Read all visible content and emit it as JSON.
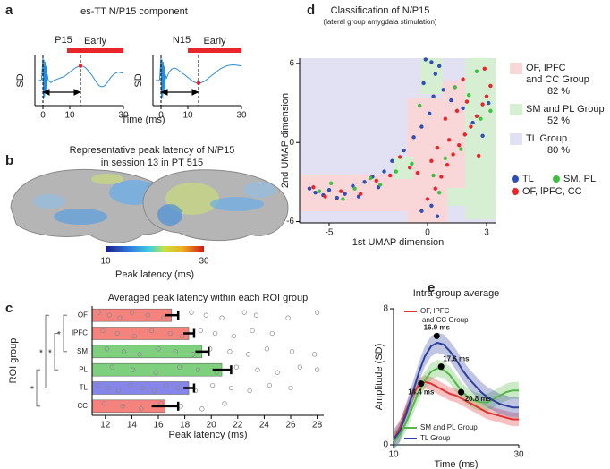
{
  "figure": {
    "panel_labels": [
      "a",
      "b",
      "c",
      "d",
      "e"
    ],
    "a_title": "es-TT N/P15 component",
    "a_xlabel": "Time (ms)",
    "b_title": "Representative peak latency of N/P15",
    "b_subtitle": "in session 13 in PT 515",
    "b_colorbar_ticks": [
      10,
      30
    ],
    "b_colorbar_label": "Peak latency (ms)"
  },
  "chart_data": [
    {
      "type": "line",
      "title": "P15",
      "ylabel": "SD",
      "color": "#2b8cd6",
      "x": [
        -2,
        -1,
        -0.5,
        0,
        0.2,
        0.4,
        0.6,
        0.8,
        1,
        1.2,
        1.4,
        1.6,
        2,
        3,
        4,
        5,
        6,
        7,
        8,
        9,
        10,
        11,
        12,
        13,
        14,
        15,
        16,
        17,
        18,
        19,
        20,
        21,
        22,
        23,
        24,
        25,
        26,
        27,
        28,
        29,
        30
      ],
      "values": [
        0,
        0,
        0.05,
        1.1,
        -0.9,
        1.0,
        -0.8,
        0.9,
        -0.6,
        0.7,
        -0.4,
        0.3,
        0,
        -0.1,
        0,
        0.05,
        0.1,
        0.15,
        0.2,
        0.3,
        0.4,
        0.5,
        0.6,
        0.66,
        0.7,
        0.68,
        0.6,
        0.45,
        0.3,
        0.1,
        -0.1,
        -0.25,
        -0.3,
        -0.25,
        -0.1,
        0.1,
        0.25,
        0.35,
        0.4,
        0.38,
        0.35
      ],
      "xlim": [
        -3,
        30
      ],
      "ylim": [
        -1.2,
        1.2
      ],
      "xticks": [
        0,
        10,
        30
      ],
      "early_label": "Early",
      "early_window": [
        9,
        30
      ],
      "peak": 14
    },
    {
      "type": "line",
      "title": "N15",
      "ylabel": "SD",
      "color": "#2b8cd6",
      "x": [
        -2,
        -1,
        -0.5,
        0,
        0.2,
        0.4,
        0.6,
        0.8,
        1,
        1.2,
        1.4,
        1.6,
        2,
        3,
        4,
        5,
        6,
        7,
        8,
        9,
        10,
        11,
        12,
        13,
        14,
        15,
        16,
        17,
        18,
        19,
        20,
        21,
        22,
        23,
        24,
        25,
        26,
        27,
        28,
        29,
        30
      ],
      "values": [
        0,
        0,
        0.05,
        1.1,
        -0.9,
        1.0,
        -0.8,
        0.9,
        -0.6,
        0.7,
        -0.4,
        0.3,
        0.1,
        0.4,
        0.55,
        0.6,
        0.55,
        0.45,
        0.35,
        0.25,
        0.15,
        0.05,
        -0.05,
        -0.1,
        -0.12,
        -0.1,
        -0.05,
        0.05,
        0.15,
        0.25,
        0.35,
        0.45,
        0.55,
        0.62,
        0.68,
        0.72,
        0.74,
        0.75,
        0.74,
        0.72,
        0.7
      ],
      "xlim": [
        -3,
        30
      ],
      "ylim": [
        -1.2,
        1.2
      ],
      "xticks": [
        0,
        10,
        30
      ],
      "early_label": "Early",
      "early_window": [
        10,
        30
      ],
      "peak": 14
    },
    {
      "type": "hbar",
      "title": "Averaged peak latency within each ROI group",
      "xlabel": "Peak latency (ms)",
      "ylabel": "ROI group",
      "categories": [
        "OF",
        "lPFC",
        "SM",
        "PL",
        "TL",
        "CC"
      ],
      "values": [
        17.0,
        18.3,
        19.3,
        20.8,
        18.3,
        16.5
      ],
      "errors": [
        0.5,
        0.4,
        0.5,
        0.7,
        0.4,
        1.0
      ],
      "colors": [
        "#f4837d",
        "#f4837d",
        "#7ed07e",
        "#7ed07e",
        "#8585ea",
        "#f4837d"
      ],
      "points": [
        [
          11.5,
          12.3,
          13.1,
          14.0,
          15.2,
          16.4,
          18.5,
          19.6,
          20.8,
          22.5,
          23.4,
          25.8,
          28
        ],
        [
          11.8,
          12.9,
          14.2,
          15.5,
          16.9,
          17.8,
          19.2,
          20.3,
          21.7,
          23.1,
          24.6
        ],
        [
          12.1,
          13.4,
          14.6,
          16.0,
          17.3,
          18.6,
          19.9,
          21.4,
          22.8,
          24.2,
          26.1,
          27.8
        ],
        [
          12.5,
          14.1,
          15.8,
          17.6,
          19.0,
          20.4,
          21.9,
          23.5,
          25.0,
          26.7,
          28
        ],
        [
          11.4,
          12.2,
          13.0,
          13.9,
          14.8,
          15.7,
          16.6,
          17.5,
          18.8,
          20.1,
          21.5,
          22.9,
          24.4,
          26.0
        ],
        [
          11.9,
          13.3,
          14.7,
          16.2,
          17.7,
          19.3,
          21.0
        ]
      ],
      "significance": [
        {
          "pair": [
            0,
            2
          ],
          "label": "*"
        },
        {
          "pair": [
            1,
            3
          ],
          "label": "*"
        },
        {
          "pair": [
            0,
            4
          ],
          "label": "*"
        },
        {
          "pair": [
            3,
            5
          ],
          "label": "*"
        }
      ],
      "xlim": [
        11,
        28.5
      ],
      "xticks": [
        12,
        14,
        16,
        18,
        20,
        22,
        24,
        26,
        28
      ]
    },
    {
      "type": "scatter",
      "title": "Classification of N/P15",
      "subtitle": "(lateral group amygdala stimulation)",
      "xlabel": "1st UMAP dimension",
      "ylabel": "2nd UMAP dimension",
      "xlim": [
        -6.5,
        3.5
      ],
      "ylim": [
        -6.1,
        6.4
      ],
      "xticks": [
        -5,
        0,
        3
      ],
      "yticks": [
        -6,
        0,
        6
      ],
      "region_legend": [
        {
          "name_lines": [
            "OF, lPFC",
            "and CC Group"
          ],
          "accuracy": "82 %",
          "color": "#f9d6d8"
        },
        {
          "name_lines": [
            "SM and PL Group"
          ],
          "accuracy": "52 %",
          "color": "#d6efd3"
        },
        {
          "name_lines": [
            "TL Group"
          ],
          "accuracy": "80 %",
          "color": "#e2e0f3"
        }
      ],
      "series": [
        {
          "name": "TL",
          "color": "#2e4fb5",
          "x": [
            -6,
            -5.7,
            -5.3,
            -5,
            -4.6,
            -4.2,
            -3.8,
            -3.5,
            -3.2,
            -2.8,
            -2.5,
            -2.2,
            -1.8,
            -1.2,
            -0.7,
            -0.3,
            0.1,
            0.3,
            -0.2,
            0.4,
            0.2,
            -0.1,
            0.6,
            0.8,
            1.2,
            1.8,
            2.3,
            2.8,
            3.1,
            0.2,
            0.5,
            -0.3
          ],
          "y": [
            -3.5,
            -3.8,
            -4,
            -3.6,
            -4.2,
            -3.9,
            -3.3,
            -4.1,
            -3,
            -2.6,
            -3.4,
            -2.2,
            -1.4,
            -0.6,
            0.4,
            1.2,
            2.2,
            3.5,
            4.5,
            5.2,
            6.1,
            6.3,
            5.8,
            4,
            3.2,
            2.6,
            1.5,
            0.5,
            3,
            -4.8,
            -5.6,
            -5.2
          ]
        },
        {
          "name": "SM, PL",
          "color": "#3fbf3f",
          "x": [
            -5.5,
            -4.9,
            -4.3,
            -3.7,
            -2.9,
            -2.4,
            -1.6,
            -0.4,
            0.3,
            0.9,
            1.4,
            2.1,
            2.7,
            3.2,
            1.7,
            2.5,
            0.6,
            -0.8
          ],
          "y": [
            -3.7,
            -3.1,
            -4.3,
            -3.5,
            -2.7,
            -3.2,
            -2.2,
            2.8,
            -2.5,
            -1.2,
            4.2,
            3.6,
            1.8,
            2.4,
            -0.5,
            5.4,
            -3.8,
            -1.6
          ]
        },
        {
          "name": "OF, lPFC, CC",
          "color": "#e8262a",
          "x": [
            -5.8,
            -5.2,
            -4.4,
            -3.4,
            -2.6,
            -1.9,
            -0.9,
            0,
            0.4,
            0.7,
            1.0,
            1.3,
            1.6,
            1.9,
            2.2,
            2.5,
            2.8,
            3.0,
            3.2,
            0.9,
            1.5,
            2.0,
            2.6,
            1.1,
            0.2,
            -0.5,
            -1.4,
            1.8,
            2.9,
            0.5
          ],
          "y": [
            -3.4,
            -4.1,
            -3.7,
            -3.9,
            -2.9,
            -2.5,
            -1.9,
            -4.3,
            -3.5,
            -2.6,
            -1.7,
            -0.9,
            -0.2,
            0.6,
            1.2,
            2,
            2.9,
            3.5,
            4.3,
            1.8,
            2.4,
            3.1,
            -1,
            0.2,
            -1.4,
            -2.3,
            -1.1,
            4.8,
            5.6,
            -0.4
          ]
        }
      ]
    },
    {
      "type": "line",
      "title": "Intra-group average",
      "xlabel": "Time (ms)",
      "ylabel": "Amplitude (SD)",
      "x": [
        10,
        11,
        12,
        13,
        14,
        15,
        16,
        17,
        18,
        19,
        20,
        21,
        22,
        23,
        24,
        25,
        26,
        27,
        28,
        29,
        30
      ],
      "series": [
        {
          "name_lines": [
            "OF, lPFC",
            "and  CC Group"
          ],
          "color": "#e2312e",
          "band": 0.4,
          "values": [
            0.3,
            1.0,
            2.0,
            2.9,
            3.5,
            3.7,
            3.6,
            3.4,
            3.2,
            3.0,
            2.9,
            2.7,
            2.5,
            2.3,
            2.1,
            1.9,
            1.8,
            1.7,
            1.6,
            1.5,
            1.5
          ]
        },
        {
          "name_lines": [
            "SM and PL Group"
          ],
          "color": "#55b848",
          "band": 0.5,
          "values": [
            0.2,
            0.6,
            1.3,
            2.2,
            3.1,
            3.8,
            4.3,
            4.5,
            4.4,
            4.1,
            3.6,
            3.1,
            2.8,
            2.6,
            2.5,
            2.5,
            2.7,
            2.9,
            3.1,
            3.2,
            3.2
          ]
        },
        {
          "name_lines": [
            "TL Group"
          ],
          "color": "#2d3f9e",
          "band": 0.6,
          "values": [
            0.3,
            0.8,
            1.8,
            3.0,
            4.2,
            5.2,
            5.8,
            6.0,
            5.9,
            5.5,
            5.0,
            4.4,
            3.9,
            3.5,
            3.1,
            2.8,
            2.6,
            2.4,
            2.3,
            2.2,
            2.2
          ]
        }
      ],
      "peak_markers": [
        {
          "x": 16.9,
          "y": 6.4,
          "label": "16.9 ms"
        },
        {
          "x": 17.6,
          "y": 4.6,
          "label": "17.6 ms"
        },
        {
          "x": 14.4,
          "y": 3.6,
          "label": "14.4 ms"
        },
        {
          "x": 20.8,
          "y": 3.1,
          "label": "20.8 ms"
        }
      ],
      "xlim": [
        10,
        30
      ],
      "ylim": [
        0,
        8
      ],
      "xticks": [
        10,
        30
      ],
      "yticks": [
        0,
        8
      ]
    }
  ]
}
